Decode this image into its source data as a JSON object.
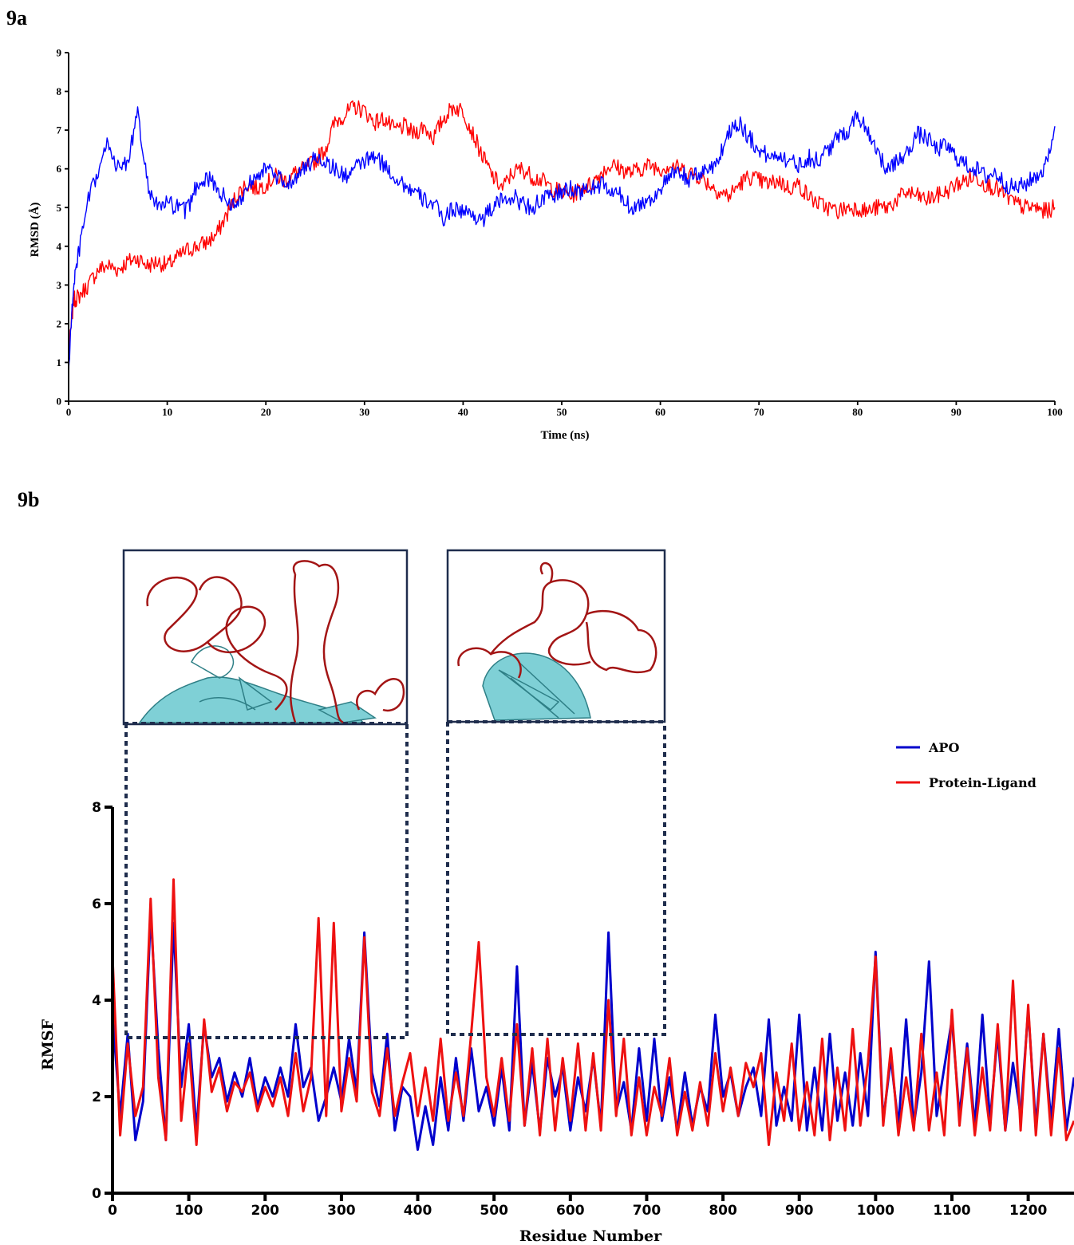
{
  "panel_a_label": "9a",
  "panel_b_label": "9b",
  "chart_data": [
    {
      "type": "line",
      "panel": "9a",
      "xlabel": "Time (ns)",
      "ylabel": "RMSD (Å)",
      "xlim": [
        0,
        100
      ],
      "ylim": [
        0,
        9
      ],
      "xticks": [
        0,
        10,
        20,
        30,
        40,
        50,
        60,
        70,
        80,
        90,
        100
      ],
      "yticks": [
        0,
        1,
        2,
        3,
        4,
        5,
        6,
        7,
        8,
        9
      ],
      "grid": false,
      "series": [
        {
          "color": "#ff0000",
          "x": [
            0,
            0.5,
            1,
            2,
            3,
            4,
            5,
            6,
            7,
            8,
            9,
            10,
            11,
            12,
            13,
            14,
            15,
            16,
            17,
            18,
            19,
            20,
            21,
            22,
            23,
            24,
            25,
            26,
            27,
            28,
            29,
            30,
            31,
            32,
            33,
            34,
            35,
            36,
            37,
            38,
            39,
            40,
            41,
            42,
            43,
            44,
            45,
            46,
            47,
            48,
            49,
            50,
            51,
            52,
            53,
            54,
            55,
            56,
            57,
            58,
            59,
            60,
            61,
            62,
            63,
            64,
            65,
            66,
            67,
            68,
            69,
            70,
            71,
            72,
            73,
            74,
            75,
            76,
            77,
            78,
            79,
            80,
            81,
            82,
            83,
            84,
            85,
            86,
            87,
            88,
            89,
            90,
            91,
            92,
            93,
            94,
            95,
            96,
            97,
            98,
            99,
            100
          ],
          "y": [
            1.2,
            2.6,
            2.7,
            3.0,
            3.4,
            3.5,
            3.4,
            3.6,
            3.7,
            3.5,
            3.6,
            3.5,
            3.7,
            3.9,
            4.0,
            4.1,
            4.3,
            4.8,
            5.3,
            5.6,
            5.5,
            5.6,
            5.8,
            5.7,
            5.9,
            6.0,
            6.2,
            6.5,
            7.2,
            7.4,
            7.6,
            7.5,
            7.2,
            7.3,
            7.0,
            7.1,
            6.9,
            7.1,
            6.8,
            7.3,
            7.6,
            7.5,
            6.9,
            6.3,
            5.8,
            5.5,
            5.9,
            6.0,
            5.8,
            5.7,
            5.5,
            5.4,
            5.3,
            5.5,
            5.6,
            5.9,
            6.1,
            6.0,
            5.9,
            6.0,
            6.1,
            6.0,
            6.1,
            6.0,
            5.9,
            5.8,
            5.6,
            5.4,
            5.3,
            5.6,
            5.8,
            5.7,
            5.6,
            5.7,
            5.5,
            5.6,
            5.3,
            5.1,
            5.0,
            4.9,
            5.0,
            5.0,
            4.9,
            5.0,
            5.0,
            5.2,
            5.4,
            5.3,
            5.2,
            5.3,
            5.4,
            5.6,
            5.7,
            5.8,
            5.6,
            5.5,
            5.3,
            5.1,
            5.0,
            5.0,
            4.9,
            5.0
          ]
        },
        {
          "color": "#0000ff",
          "x": [
            0,
            0.5,
            1,
            2,
            3,
            4,
            5,
            6,
            7,
            8,
            9,
            10,
            11,
            12,
            13,
            14,
            15,
            16,
            17,
            18,
            19,
            20,
            21,
            22,
            23,
            24,
            25,
            26,
            27,
            28,
            29,
            30,
            31,
            32,
            33,
            34,
            35,
            36,
            37,
            38,
            39,
            40,
            41,
            42,
            43,
            44,
            45,
            46,
            47,
            48,
            49,
            50,
            51,
            52,
            53,
            54,
            55,
            56,
            57,
            58,
            59,
            60,
            61,
            62,
            63,
            64,
            65,
            66,
            67,
            68,
            69,
            70,
            71,
            72,
            73,
            74,
            75,
            76,
            77,
            78,
            79,
            80,
            81,
            82,
            83,
            84,
            85,
            86,
            87,
            88,
            89,
            90,
            91,
            92,
            93,
            94,
            95,
            96,
            97,
            98,
            99,
            100
          ],
          "y": [
            0.8,
            3.0,
            3.8,
            5.2,
            5.9,
            6.7,
            6.0,
            6.2,
            7.4,
            5.6,
            5.0,
            5.1,
            5.0,
            4.9,
            5.6,
            5.8,
            5.5,
            5.2,
            5.0,
            5.5,
            5.9,
            6.0,
            5.8,
            5.6,
            5.8,
            6.0,
            6.3,
            6.2,
            6.0,
            5.8,
            6.0,
            6.2,
            6.3,
            6.1,
            5.8,
            5.6,
            5.4,
            5.2,
            5.1,
            4.7,
            5.0,
            4.9,
            4.8,
            4.7,
            5.0,
            5.2,
            5.3,
            5.1,
            5.0,
            5.2,
            5.3,
            5.4,
            5.5,
            5.4,
            5.5,
            5.6,
            5.4,
            5.3,
            5.0,
            5.1,
            5.2,
            5.5,
            5.8,
            5.9,
            5.7,
            5.9,
            6.0,
            6.3,
            7.0,
            7.2,
            6.8,
            6.5,
            6.3,
            6.4,
            6.2,
            6.1,
            6.3,
            6.2,
            6.5,
            6.8,
            7.0,
            7.4,
            7.0,
            6.5,
            5.9,
            6.2,
            6.4,
            6.9,
            6.8,
            6.5,
            6.6,
            6.3,
            6.1,
            6.0,
            5.8,
            5.9,
            5.6,
            5.5,
            5.6,
            5.8,
            6.0,
            7.1
          ]
        }
      ]
    },
    {
      "type": "line",
      "panel": "9b",
      "xlabel": "Residue Number",
      "ylabel": "RMSF",
      "xlim": [
        0,
        1260
      ],
      "ylim": [
        0,
        8
      ],
      "xticks": [
        0,
        100,
        200,
        300,
        400,
        500,
        600,
        700,
        800,
        900,
        1000,
        1100,
        1200
      ],
      "yticks": [
        0,
        2,
        4,
        6,
        8
      ],
      "grid": false,
      "legend_position": "top-right",
      "series": [
        {
          "name": "APO",
          "color": "#0000cc",
          "x": [
            0,
            10,
            20,
            30,
            40,
            50,
            60,
            70,
            80,
            90,
            100,
            110,
            120,
            130,
            140,
            150,
            160,
            170,
            180,
            190,
            200,
            210,
            220,
            230,
            240,
            250,
            260,
            270,
            280,
            290,
            300,
            310,
            320,
            330,
            340,
            350,
            360,
            370,
            380,
            390,
            400,
            410,
            420,
            430,
            440,
            450,
            460,
            470,
            480,
            490,
            500,
            510,
            520,
            530,
            540,
            550,
            560,
            570,
            580,
            590,
            600,
            610,
            620,
            630,
            640,
            650,
            660,
            670,
            680,
            690,
            700,
            710,
            720,
            730,
            740,
            750,
            760,
            770,
            780,
            790,
            800,
            810,
            820,
            830,
            840,
            850,
            860,
            870,
            880,
            890,
            900,
            910,
            920,
            930,
            940,
            950,
            960,
            970,
            980,
            990,
            1000,
            1010,
            1020,
            1030,
            1040,
            1050,
            1060,
            1070,
            1080,
            1090,
            1100,
            1110,
            1120,
            1130,
            1140,
            1150,
            1160,
            1170,
            1180,
            1190,
            1200,
            1210,
            1220,
            1230,
            1240,
            1250,
            1260
          ],
          "y": [
            3.7,
            1.6,
            3.3,
            1.1,
            1.9,
            5.8,
            3.0,
            1.1,
            5.6,
            2.2,
            3.5,
            1.3,
            3.5,
            2.4,
            2.8,
            1.9,
            2.5,
            2.0,
            2.8,
            1.8,
            2.4,
            2.0,
            2.6,
            2.0,
            3.5,
            2.2,
            2.6,
            1.5,
            2.0,
            2.6,
            1.9,
            3.2,
            2.1,
            5.4,
            2.5,
            1.8,
            3.3,
            1.3,
            2.2,
            2.0,
            0.9,
            1.8,
            1.0,
            2.4,
            1.3,
            2.8,
            1.5,
            3.0,
            1.7,
            2.2,
            1.4,
            2.6,
            1.3,
            4.7,
            1.4,
            2.7,
            1.3,
            2.8,
            2.0,
            2.6,
            1.3,
            2.4,
            1.7,
            2.8,
            1.4,
            5.4,
            1.7,
            2.3,
            1.3,
            3.0,
            1.5,
            3.2,
            1.5,
            2.4,
            1.3,
            2.5,
            1.4,
            2.2,
            1.7,
            3.7,
            2.0,
            2.5,
            1.6,
            2.2,
            2.6,
            1.6,
            3.6,
            1.4,
            2.2,
            1.5,
            3.7,
            1.3,
            2.6,
            1.3,
            3.3,
            1.5,
            2.5,
            1.4,
            2.9,
            1.6,
            5.0,
            1.5,
            2.8,
            1.4,
            3.6,
            1.4,
            2.5,
            4.8,
            1.6,
            2.6,
            3.6,
            1.6,
            3.1,
            1.4,
            3.7,
            1.5,
            3.3,
            1.3,
            2.7,
            1.6,
            3.8,
            1.4,
            3.3,
            1.5,
            3.4,
            1.3,
            2.4
          ]
        },
        {
          "name": "Protein-Ligand",
          "color": "#ee1111",
          "x": [
            0,
            10,
            20,
            30,
            40,
            50,
            60,
            70,
            80,
            90,
            100,
            110,
            120,
            130,
            140,
            150,
            160,
            170,
            180,
            190,
            200,
            210,
            220,
            230,
            240,
            250,
            260,
            270,
            280,
            290,
            300,
            310,
            320,
            330,
            340,
            350,
            360,
            370,
            380,
            390,
            400,
            410,
            420,
            430,
            440,
            450,
            460,
            470,
            480,
            490,
            500,
            510,
            520,
            530,
            540,
            550,
            560,
            570,
            580,
            590,
            600,
            610,
            620,
            630,
            640,
            650,
            660,
            670,
            680,
            690,
            700,
            710,
            720,
            730,
            740,
            750,
            760,
            770,
            780,
            790,
            800,
            810,
            820,
            830,
            840,
            850,
            860,
            870,
            880,
            890,
            900,
            910,
            920,
            930,
            940,
            950,
            960,
            970,
            980,
            990,
            1000,
            1010,
            1020,
            1030,
            1040,
            1050,
            1060,
            1070,
            1080,
            1090,
            1100,
            1110,
            1120,
            1130,
            1140,
            1150,
            1160,
            1170,
            1180,
            1190,
            1200,
            1210,
            1220,
            1230,
            1240,
            1250,
            1260
          ],
          "y": [
            4.9,
            1.2,
            3.1,
            1.6,
            2.2,
            6.1,
            2.4,
            1.1,
            6.5,
            1.5,
            3.1,
            1.0,
            3.6,
            2.1,
            2.6,
            1.7,
            2.3,
            2.1,
            2.5,
            1.7,
            2.2,
            1.8,
            2.4,
            1.6,
            2.9,
            1.7,
            2.4,
            5.7,
            1.6,
            5.6,
            1.7,
            2.8,
            1.9,
            5.3,
            2.1,
            1.6,
            3.0,
            1.6,
            2.3,
            2.9,
            1.6,
            2.6,
            1.5,
            3.2,
            1.5,
            2.5,
            1.6,
            3.3,
            5.2,
            2.4,
            1.6,
            2.8,
            1.5,
            3.5,
            1.4,
            3.0,
            1.2,
            3.2,
            1.3,
            2.8,
            1.5,
            3.1,
            1.3,
            2.9,
            1.3,
            4.0,
            1.6,
            3.2,
            1.2,
            2.4,
            1.2,
            2.2,
            1.6,
            2.8,
            1.2,
            2.1,
            1.3,
            2.3,
            1.4,
            2.9,
            1.7,
            2.6,
            1.6,
            2.7,
            2.2,
            2.9,
            1.0,
            2.5,
            1.5,
            3.1,
            1.3,
            2.3,
            1.2,
            3.2,
            1.1,
            2.6,
            1.3,
            3.4,
            1.4,
            2.7,
            4.9,
            1.4,
            3.0,
            1.2,
            2.4,
            1.3,
            3.3,
            1.3,
            2.5,
            1.2,
            3.8,
            1.4,
            3.0,
            1.2,
            2.6,
            1.3,
            3.5,
            1.3,
            4.4,
            1.3,
            3.9,
            1.2,
            3.3,
            1.2,
            3.0,
            1.1,
            1.5
          ]
        }
      ]
    }
  ]
}
